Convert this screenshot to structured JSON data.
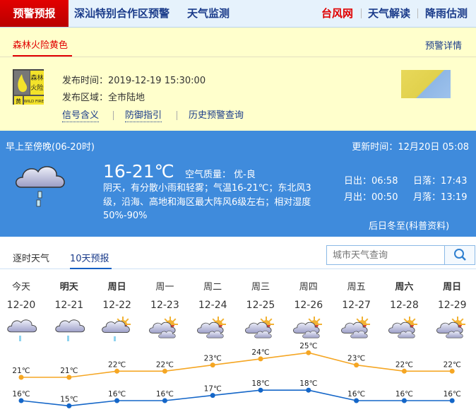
{
  "nav": {
    "active": "预警预报",
    "items": [
      "深汕特别合作区预警",
      "天气监测"
    ],
    "right": [
      {
        "label": "台风网",
        "color": "#e00000"
      },
      {
        "label": "天气解读",
        "color": "#1a3b8a"
      },
      {
        "label": "降雨估测",
        "color": "#1a3b8a"
      }
    ]
  },
  "warning": {
    "title": "森林火险黄色",
    "detail_link": "预警详情",
    "badge": {
      "top": "森林",
      "mid": "火险",
      "level": "黄",
      "en": "WILD FIRE"
    },
    "issue_time_label": "发布时间：",
    "issue_time": "2019-12-19 15:30:00",
    "area_label": "发布区域：",
    "area": "全市陆地",
    "links": [
      "信号含义",
      "防御指引",
      "历史预警查询"
    ]
  },
  "now": {
    "period": "早上至傍晚(06-20时)",
    "update_label": "更新时间：",
    "update_time": "12月20日 05:08",
    "temp": "16-21℃",
    "aq_label": "空气质量：",
    "aq": "优-良",
    "desc": "阴天，有分散小雨和轻雾；气温16-21℃；东北风3级，沿海、高地和海区最大阵风6级左右；相对湿度50%-90%",
    "sunrise": "日出：06:58",
    "sunset": "日落：17:43",
    "moonrise": "月出：00:50",
    "moonset": "月落：13:19",
    "note": "后日冬至(科普资料)",
    "icon": "cloud-rain-icon"
  },
  "tabs": {
    "items": [
      "逐时天气",
      "10天预报"
    ],
    "active": 1
  },
  "search": {
    "placeholder": "城市天气查询",
    "icon": "search-icon"
  },
  "forecast": [
    {
      "day": "今天",
      "bold": false,
      "date": "12-20",
      "icon": "cloud-rain"
    },
    {
      "day": "明天",
      "bold": true,
      "date": "12-21",
      "icon": "cloud-rain"
    },
    {
      "day": "周日",
      "bold": true,
      "date": "12-22",
      "icon": "cloud-sun-rain"
    },
    {
      "day": "周一",
      "bold": false,
      "date": "12-23",
      "icon": "partly-cloudy"
    },
    {
      "day": "周二",
      "bold": false,
      "date": "12-24",
      "icon": "partly-cloudy"
    },
    {
      "day": "周三",
      "bold": false,
      "date": "12-25",
      "icon": "partly-cloudy"
    },
    {
      "day": "周四",
      "bold": false,
      "date": "12-26",
      "icon": "partly-cloudy"
    },
    {
      "day": "周五",
      "bold": false,
      "date": "12-27",
      "icon": "partly-cloudy"
    },
    {
      "day": "周六",
      "bold": true,
      "date": "12-28",
      "icon": "partly-cloudy"
    },
    {
      "day": "周日",
      "bold": true,
      "date": "12-29",
      "icon": "partly-cloudy"
    }
  ],
  "chart_data": {
    "type": "line",
    "categories": [
      "12-20",
      "12-21",
      "12-22",
      "12-23",
      "12-24",
      "12-25",
      "12-26",
      "12-27",
      "12-28",
      "12-29"
    ],
    "unit": "℃",
    "series": [
      {
        "key": "high",
        "color": "#f5a623",
        "values": [
          21,
          21,
          22,
          22,
          23,
          24,
          25,
          23,
          22,
          22
        ]
      },
      {
        "key": "low",
        "color": "#1466c8",
        "values": [
          16,
          15,
          16,
          16,
          17,
          18,
          18,
          16,
          16,
          16
        ]
      }
    ]
  }
}
